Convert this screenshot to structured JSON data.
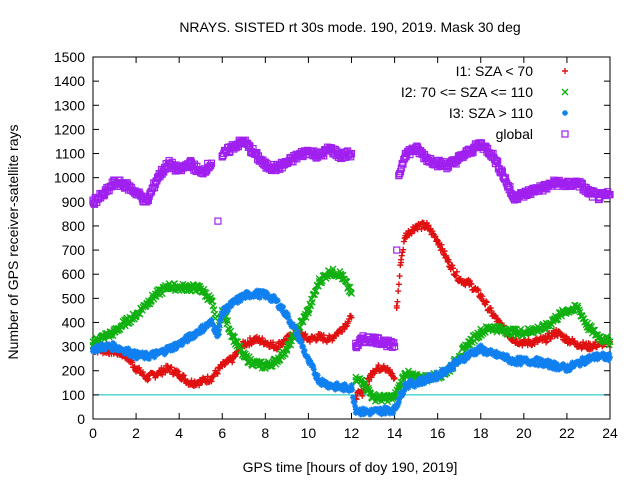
{
  "chart_data": {
    "type": "scatter",
    "title": "NRAYS. SISTED rt 30s mode. 190, 2019. Mask 30 deg",
    "xlabel": "GPS time [hours of doy 190, 2019]",
    "ylabel": "Number of GPS receiver-satellite rays",
    "xlim": [
      0,
      24
    ],
    "ylim": [
      0,
      1500
    ],
    "xticks": [
      "0",
      "2",
      "4",
      "6",
      "8",
      "10",
      "12",
      "14",
      "16",
      "18",
      "20",
      "22",
      "24"
    ],
    "yticks": [
      "0",
      "100",
      "200",
      "300",
      "400",
      "500",
      "600",
      "700",
      "800",
      "900",
      "1000",
      "1100",
      "1200",
      "1300",
      "1400",
      "1500"
    ],
    "legend_position": "top-right",
    "reference_line": {
      "y": 100,
      "color": "#00c0c0"
    },
    "series": [
      {
        "name": "I1: SZA < 70",
        "marker": "+",
        "color": "#e01010",
        "points": [
          [
            0,
            290
          ],
          [
            0.5,
            285
          ],
          [
            1,
            280
          ],
          [
            1.5,
            265
          ],
          [
            2,
            210
          ],
          [
            2.5,
            170
          ],
          [
            3,
            190
          ],
          [
            3.5,
            210
          ],
          [
            4,
            185
          ],
          [
            4.5,
            150
          ],
          [
            5,
            155
          ],
          [
            5.5,
            170
          ],
          [
            6,
            220
          ],
          [
            6.5,
            250
          ],
          [
            7,
            310
          ],
          [
            7.5,
            330
          ],
          [
            8,
            320
          ],
          [
            8.5,
            300
          ],
          [
            9,
            330
          ],
          [
            9.5,
            360
          ],
          [
            10,
            330
          ],
          [
            10.5,
            340
          ],
          [
            11,
            330
          ],
          [
            11.5,
            370
          ],
          [
            12,
            420
          ],
          [
            12.2,
            95
          ],
          [
            12.5,
            110
          ],
          [
            13,
            200
          ],
          [
            13.5,
            220
          ],
          [
            14,
            170
          ],
          [
            14.1,
            460
          ],
          [
            14.3,
            660
          ],
          [
            14.5,
            760
          ],
          [
            15,
            800
          ],
          [
            15.5,
            800
          ],
          [
            16,
            740
          ],
          [
            16.5,
            650
          ],
          [
            17,
            580
          ],
          [
            17.5,
            560
          ],
          [
            18,
            510
          ],
          [
            18.5,
            440
          ],
          [
            19,
            380
          ],
          [
            19.5,
            330
          ],
          [
            20,
            315
          ],
          [
            20.5,
            320
          ],
          [
            21,
            330
          ],
          [
            21.5,
            360
          ],
          [
            22,
            330
          ],
          [
            22.5,
            310
          ],
          [
            23,
            300
          ],
          [
            23.5,
            310
          ],
          [
            24,
            320
          ]
        ]
      },
      {
        "name": "I2: 70 <= SZA <= 110",
        "marker": "x",
        "color": "#10b010",
        "points": [
          [
            0,
            320
          ],
          [
            0.5,
            340
          ],
          [
            1,
            360
          ],
          [
            1.5,
            400
          ],
          [
            2,
            430
          ],
          [
            2.5,
            480
          ],
          [
            3,
            520
          ],
          [
            3.5,
            550
          ],
          [
            4,
            545
          ],
          [
            4.5,
            545
          ],
          [
            5,
            540
          ],
          [
            5.5,
            490
          ],
          [
            5.8,
            360
          ],
          [
            6,
            450
          ],
          [
            6.5,
            340
          ],
          [
            7,
            260
          ],
          [
            7.5,
            230
          ],
          [
            8,
            220
          ],
          [
            8.5,
            240
          ],
          [
            9,
            290
          ],
          [
            9.5,
            370
          ],
          [
            10,
            450
          ],
          [
            10.5,
            570
          ],
          [
            11,
            610
          ],
          [
            11.5,
            600
          ],
          [
            12,
            520
          ],
          [
            12.2,
            160
          ],
          [
            12.5,
            160
          ],
          [
            13,
            90
          ],
          [
            13.5,
            85
          ],
          [
            14,
            90
          ],
          [
            14.5,
            190
          ],
          [
            15,
            170
          ],
          [
            15.5,
            170
          ],
          [
            16,
            180
          ],
          [
            16.5,
            200
          ],
          [
            17,
            260
          ],
          [
            17.5,
            320
          ],
          [
            18,
            360
          ],
          [
            18.5,
            380
          ],
          [
            19,
            370
          ],
          [
            19.5,
            360
          ],
          [
            20,
            360
          ],
          [
            20.5,
            370
          ],
          [
            21,
            380
          ],
          [
            21.5,
            420
          ],
          [
            22,
            450
          ],
          [
            22.5,
            460
          ],
          [
            23,
            380
          ],
          [
            23.5,
            340
          ],
          [
            24,
            320
          ]
        ]
      },
      {
        "name": "I3: SZA > 110",
        "marker": "*",
        "color": "#1080f0",
        "points": [
          [
            0,
            290
          ],
          [
            0.5,
            300
          ],
          [
            1,
            300
          ],
          [
            1.5,
            285
          ],
          [
            2,
            265
          ],
          [
            2.5,
            260
          ],
          [
            3,
            270
          ],
          [
            3.5,
            290
          ],
          [
            4,
            310
          ],
          [
            4.5,
            340
          ],
          [
            5,
            370
          ],
          [
            5.5,
            400
          ],
          [
            5.8,
            350
          ],
          [
            6,
            440
          ],
          [
            6.5,
            480
          ],
          [
            7,
            510
          ],
          [
            7.5,
            520
          ],
          [
            8,
            515
          ],
          [
            8.5,
            490
          ],
          [
            9,
            430
          ],
          [
            9.5,
            350
          ],
          [
            10,
            240
          ],
          [
            10.5,
            160
          ],
          [
            11,
            140
          ],
          [
            11.5,
            130
          ],
          [
            12,
            130
          ],
          [
            12.2,
            40
          ],
          [
            12.5,
            30
          ],
          [
            13,
            30
          ],
          [
            13.5,
            35
          ],
          [
            14,
            40
          ],
          [
            14.2,
            80
          ],
          [
            14.5,
            140
          ],
          [
            15,
            150
          ],
          [
            15.5,
            165
          ],
          [
            16,
            180
          ],
          [
            16.5,
            210
          ],
          [
            17,
            240
          ],
          [
            17.5,
            270
          ],
          [
            18,
            290
          ],
          [
            18.5,
            270
          ],
          [
            19,
            260
          ],
          [
            19.5,
            240
          ],
          [
            20,
            240
          ],
          [
            20.5,
            240
          ],
          [
            21,
            230
          ],
          [
            21.5,
            220
          ],
          [
            22,
            210
          ],
          [
            22.5,
            230
          ],
          [
            23,
            250
          ],
          [
            23.5,
            260
          ],
          [
            24,
            255
          ]
        ]
      },
      {
        "name": "global",
        "marker": "square",
        "color": "#a020f0",
        "points": [
          [
            0,
            900
          ],
          [
            0.5,
            930
          ],
          [
            1,
            980
          ],
          [
            1.5,
            970
          ],
          [
            2,
            940
          ],
          [
            2.5,
            900
          ],
          [
            3,
            1000
          ],
          [
            3.5,
            1060
          ],
          [
            4,
            1030
          ],
          [
            4.5,
            1060
          ],
          [
            5,
            1020
          ],
          [
            5.5,
            1060
          ],
          [
            5.8,
            820
          ],
          [
            6,
            1090
          ],
          [
            6.5,
            1130
          ],
          [
            7,
            1150
          ],
          [
            7.5,
            1100
          ],
          [
            8,
            1050
          ],
          [
            8.5,
            1040
          ],
          [
            9,
            1060
          ],
          [
            9.5,
            1090
          ],
          [
            10,
            1110
          ],
          [
            10.5,
            1090
          ],
          [
            11,
            1120
          ],
          [
            11.5,
            1090
          ],
          [
            12,
            1100
          ],
          [
            12.2,
            300
          ],
          [
            12.5,
            330
          ],
          [
            13,
            330
          ],
          [
            13.5,
            320
          ],
          [
            14,
            300
          ],
          [
            14.1,
            700
          ],
          [
            14.2,
            1010
          ],
          [
            14.5,
            1100
          ],
          [
            15,
            1120
          ],
          [
            15.5,
            1080
          ],
          [
            16,
            1060
          ],
          [
            16.5,
            1050
          ],
          [
            17,
            1080
          ],
          [
            17.5,
            1110
          ],
          [
            18,
            1140
          ],
          [
            18.5,
            1100
          ],
          [
            19,
            1020
          ],
          [
            19.5,
            920
          ],
          [
            20,
            930
          ],
          [
            20.5,
            950
          ],
          [
            21,
            960
          ],
          [
            21.5,
            980
          ],
          [
            22,
            970
          ],
          [
            22.5,
            980
          ],
          [
            23,
            940
          ],
          [
            23.5,
            920
          ],
          [
            24,
            930
          ]
        ]
      }
    ]
  }
}
